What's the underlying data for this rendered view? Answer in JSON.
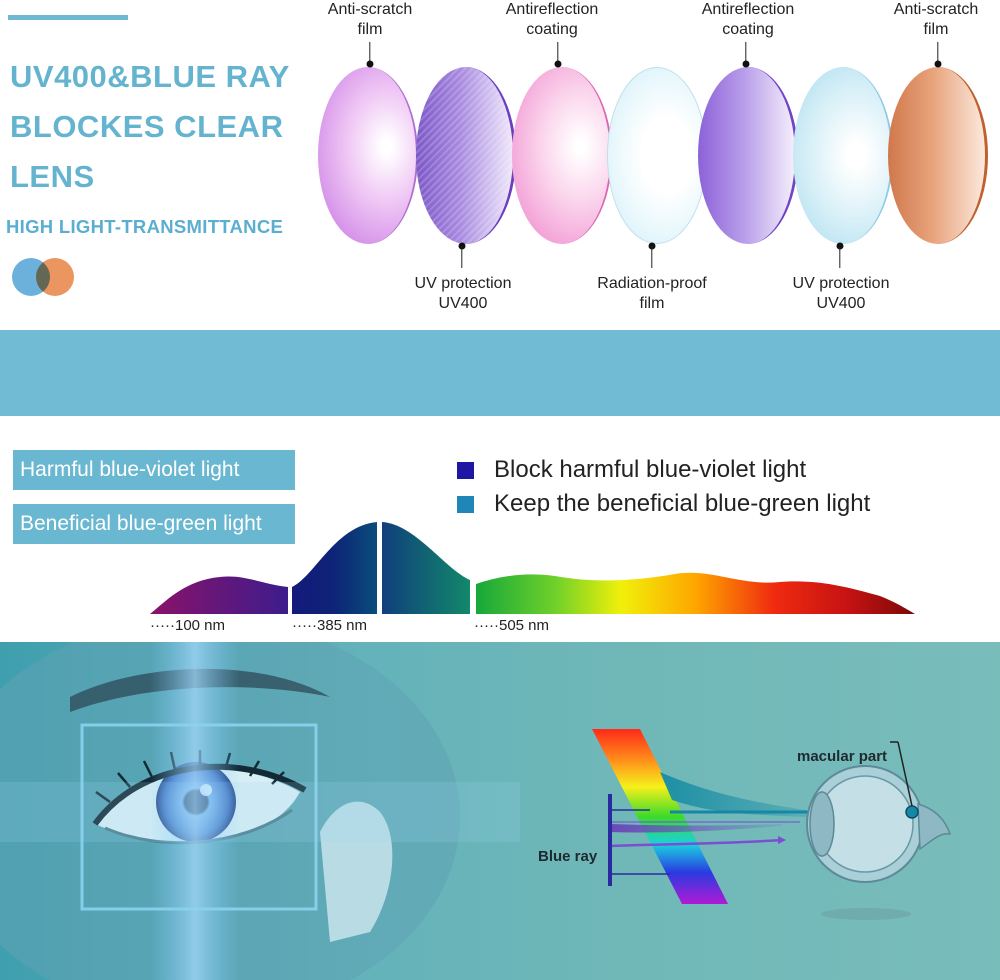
{
  "header": {
    "title_lines": [
      "UV400&BLUE RAY",
      "BLOCKES CLEAR",
      "LENS"
    ],
    "subtitle": "HIGH  LIGHT-TRANSMITTANCE"
  },
  "lens_layers": {
    "top_labels": [
      {
        "line1": "Anti-scratch",
        "line2": "film"
      },
      {
        "line1": "Antireflection",
        "line2": "coating"
      },
      {
        "line1": "Antireflection",
        "line2": "coating"
      },
      {
        "line1": "Anti-scratch",
        "line2": "film"
      }
    ],
    "bottom_labels": [
      {
        "line1": "UV protection",
        "line2": "UV400"
      },
      {
        "line1": "Radiation-proof",
        "line2": "film"
      },
      {
        "line1": "UV protection",
        "line2": "UV400"
      }
    ]
  },
  "spectrum": {
    "tags": [
      "Harmful blue-violet light",
      "Beneficial blue-green light"
    ],
    "legend": [
      {
        "text": "Block harmful blue-violet light",
        "color": "#1d17a3"
      },
      {
        "text": "Keep the beneficial blue-green light",
        "color": "#1f87b8"
      }
    ],
    "markers": [
      "·····100 nm",
      "·····385 nm",
      "·····505 nm"
    ]
  },
  "diagram": {
    "macular_label": "macular part",
    "blue_ray_label": "Blue ray"
  },
  "colors": {
    "accent": "#6fb8d2",
    "band": "#71bcd4"
  }
}
